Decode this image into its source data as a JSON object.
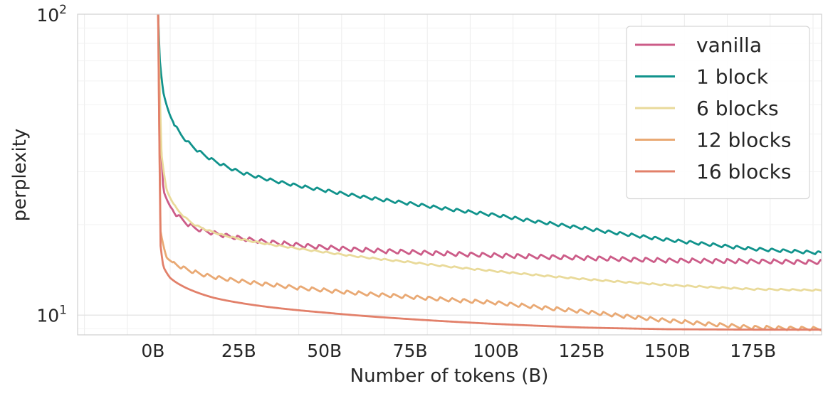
{
  "chart_data": {
    "type": "line",
    "title": "",
    "xlabel": "Number of tokens (B)",
    "ylabel": "perplexity",
    "x_scale": "linear",
    "y_scale": "log",
    "xlim": [
      -22,
      195
    ],
    "ylim": [
      8.6,
      100
    ],
    "x_ticks": [
      0,
      25,
      50,
      75,
      100,
      125,
      150,
      175
    ],
    "x_tick_labels": [
      "0B",
      "25B",
      "50B",
      "75B",
      "100B",
      "125B",
      "150B",
      "175B"
    ],
    "y_ticks": [
      {
        "value": 10,
        "base": "10",
        "exp": "1"
      },
      {
        "value": 100,
        "base": "10",
        "exp": "2"
      }
    ],
    "grid": true,
    "legend_position": "top-right",
    "series": [
      {
        "name": "vanilla",
        "color": "#cc5c88",
        "sawtooth": 0.035,
        "points": [
          [
            1.5,
            100
          ],
          [
            2.2,
            40
          ],
          [
            3,
            26
          ],
          [
            5,
            23
          ],
          [
            8,
            21
          ],
          [
            12,
            19.5
          ],
          [
            20,
            18.5
          ],
          [
            30,
            17.7
          ],
          [
            40,
            17.2
          ],
          [
            50,
            16.8
          ],
          [
            60,
            16.5
          ],
          [
            75,
            16.2
          ],
          [
            100,
            15.8
          ],
          [
            125,
            15.5
          ],
          [
            150,
            15.2
          ],
          [
            175,
            15.1
          ],
          [
            195,
            15.0
          ]
        ]
      },
      {
        "name": "1 block",
        "color": "#11938c",
        "sawtooth": 0.025,
        "points": [
          [
            1.5,
            100
          ],
          [
            2,
            70
          ],
          [
            3,
            55
          ],
          [
            5,
            46
          ],
          [
            8,
            40
          ],
          [
            12,
            36
          ],
          [
            18,
            32.5
          ],
          [
            25,
            30
          ],
          [
            35,
            28
          ],
          [
            50,
            26
          ],
          [
            75,
            23.5
          ],
          [
            100,
            21.5
          ],
          [
            125,
            19.5
          ],
          [
            150,
            17.8
          ],
          [
            175,
            16.6
          ],
          [
            195,
            16.1
          ]
        ]
      },
      {
        "name": "6 blocks",
        "color": "#e9da9a",
        "sawtooth": 0.012,
        "points": [
          [
            1.5,
            100
          ],
          [
            2.5,
            34
          ],
          [
            4,
            26
          ],
          [
            7,
            22.5
          ],
          [
            12,
            20
          ],
          [
            20,
            18.5
          ],
          [
            30,
            17.5
          ],
          [
            40,
            16.8
          ],
          [
            50,
            16.2
          ],
          [
            75,
            15.0
          ],
          [
            100,
            14.0
          ],
          [
            125,
            13.2
          ],
          [
            150,
            12.6
          ],
          [
            175,
            12.2
          ],
          [
            195,
            12.1
          ]
        ]
      },
      {
        "name": "12 blocks",
        "color": "#e9a974",
        "sawtooth": 0.03,
        "points": [
          [
            1.5,
            100
          ],
          [
            2.2,
            19
          ],
          [
            4,
            15.5
          ],
          [
            8,
            14.5
          ],
          [
            15,
            13.6
          ],
          [
            25,
            13.0
          ],
          [
            35,
            12.6
          ],
          [
            50,
            12.1
          ],
          [
            75,
            11.5
          ],
          [
            100,
            11.0
          ],
          [
            125,
            10.3
          ],
          [
            150,
            9.6
          ],
          [
            175,
            9.1
          ],
          [
            195,
            9.0
          ]
        ]
      },
      {
        "name": "16 blocks",
        "color": "#e2806a",
        "sawtooth": 0,
        "points": [
          [
            1.5,
            100
          ],
          [
            2.2,
            17
          ],
          [
            3,
            14.5
          ],
          [
            5,
            13.3
          ],
          [
            8,
            12.6
          ],
          [
            12,
            12.0
          ],
          [
            18,
            11.4
          ],
          [
            25,
            11.0
          ],
          [
            35,
            10.6
          ],
          [
            50,
            10.2
          ],
          [
            75,
            9.7
          ],
          [
            100,
            9.35
          ],
          [
            125,
            9.1
          ],
          [
            150,
            8.98
          ],
          [
            175,
            8.95
          ],
          [
            195,
            8.95
          ]
        ]
      }
    ]
  }
}
